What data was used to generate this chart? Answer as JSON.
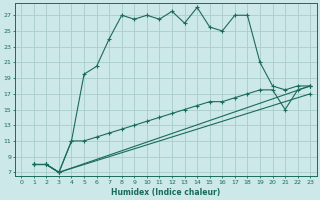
{
  "xlabel": "Humidex (Indice chaleur)",
  "bg_color": "#cce8e8",
  "grid_color": "#aacccc",
  "line_color": "#1a6b5a",
  "xlim": [
    -0.5,
    23.5
  ],
  "ylim": [
    6.5,
    28.5
  ],
  "yticks": [
    7,
    9,
    11,
    13,
    15,
    17,
    19,
    21,
    23,
    25,
    27
  ],
  "xticks": [
    0,
    1,
    2,
    3,
    4,
    5,
    6,
    7,
    8,
    9,
    10,
    11,
    12,
    13,
    14,
    15,
    16,
    17,
    18,
    19,
    20,
    21,
    22,
    23
  ],
  "line1_x": [
    1,
    2,
    3,
    4,
    5,
    6,
    7,
    8,
    9,
    10,
    11,
    12,
    13,
    14,
    15,
    16,
    17,
    18,
    19,
    20,
    21,
    22,
    23
  ],
  "line1_y": [
    8,
    8,
    7,
    11,
    19.5,
    20.5,
    24,
    27,
    26.5,
    27,
    26.5,
    27.5,
    26,
    28,
    25.5,
    25,
    27,
    27,
    21,
    18,
    17.5,
    18,
    18
  ],
  "line2_x": [
    1,
    2,
    3,
    4,
    5,
    6,
    7,
    8,
    9,
    10,
    11,
    12,
    13,
    14,
    15,
    16,
    17,
    18,
    19,
    20,
    21,
    22,
    23
  ],
  "line2_y": [
    8,
    8,
    7,
    11,
    11,
    11.5,
    12,
    12.5,
    13,
    13.5,
    14,
    14.5,
    15,
    15.5,
    16,
    16,
    16.5,
    17,
    17.5,
    17.5,
    15,
    17.5,
    18
  ],
  "line3_x": [
    1,
    2,
    3,
    23
  ],
  "line3_y": [
    8,
    8,
    7,
    18
  ],
  "line4_x": [
    1,
    2,
    3,
    23
  ],
  "line4_y": [
    8,
    8,
    7,
    17
  ]
}
